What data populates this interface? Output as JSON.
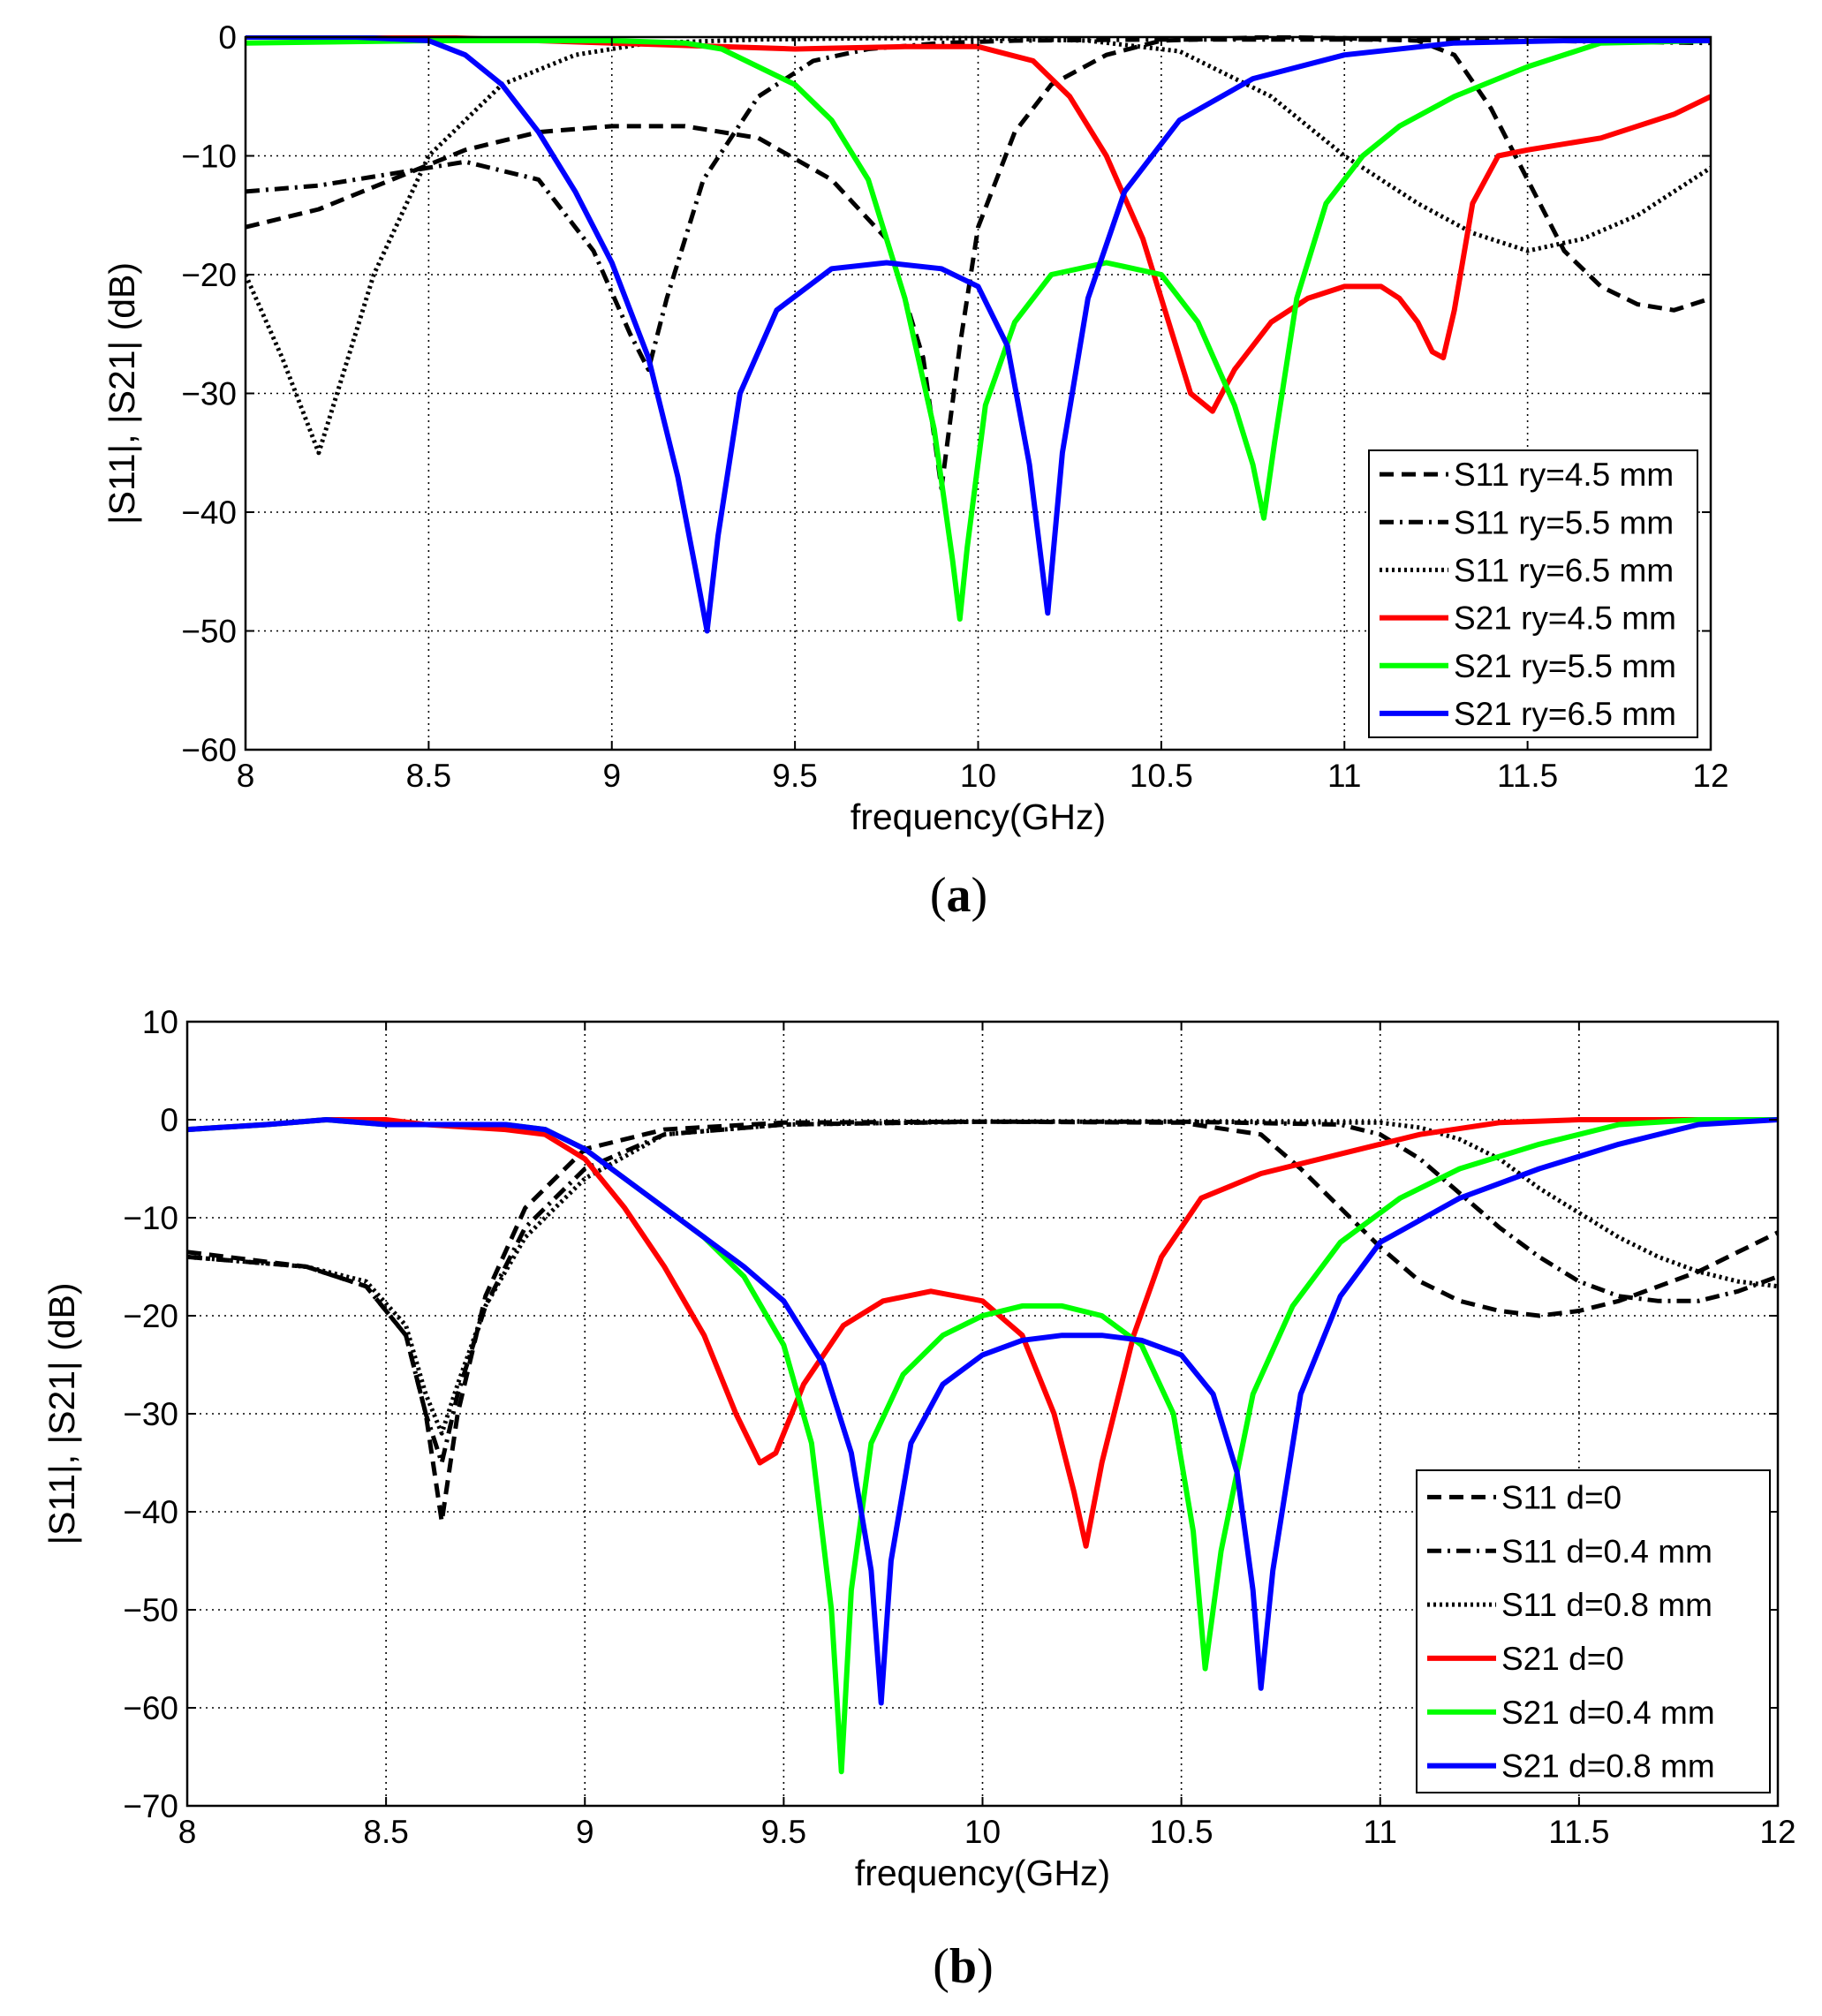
{
  "chart_data": [
    {
      "type": "line",
      "panel_label": "(a)",
      "panel_letter": "a",
      "xlabel": "frequency(GHz)",
      "ylabel": "|S11|, |S21| (dB)",
      "xlim": [
        8,
        12
      ],
      "ylim": [
        -60,
        0
      ],
      "xticks": [
        8,
        8.5,
        9,
        9.5,
        10,
        10.5,
        11,
        11.5,
        12
      ],
      "yticks": [
        -60,
        -50,
        -40,
        -30,
        -20,
        -10,
        0
      ],
      "xtick_labels": [
        "8",
        "8.5",
        "9",
        "9.5",
        "10",
        "10.5",
        "11",
        "11.5",
        "12"
      ],
      "ytick_labels": [
        "−60",
        "−50",
        "−40",
        "−30",
        "−20",
        "−10",
        "0"
      ],
      "grid": true,
      "legend_position": "bottom-right",
      "series": [
        {
          "name": "S11 ry=4.5 mm",
          "color": "#000000",
          "dash": "dashed",
          "x": [
            8,
            8.2,
            8.4,
            8.6,
            8.8,
            9,
            9.2,
            9.4,
            9.6,
            9.75,
            9.85,
            9.9,
            9.95,
            10,
            10.1,
            10.2,
            10.35,
            10.5,
            10.8,
            11,
            11.2,
            11.3,
            11.4,
            11.5,
            11.6,
            11.7,
            11.8,
            11.9,
            12
          ],
          "y": [
            -16,
            -14.5,
            -12,
            -9.5,
            -8,
            -7.5,
            -7.5,
            -8.5,
            -12,
            -17,
            -27,
            -38,
            -26,
            -16,
            -8,
            -4,
            -1.5,
            -0.3,
            0,
            -0.1,
            -0.3,
            -1.5,
            -6,
            -12,
            -18,
            -21,
            -22.5,
            -23,
            -22
          ]
        },
        {
          "name": "S11 ry=5.5 mm",
          "color": "#000000",
          "dash": "dashdot",
          "x": [
            8,
            8.2,
            8.4,
            8.6,
            8.8,
            8.95,
            9.05,
            9.1,
            9.15,
            9.25,
            9.4,
            9.55,
            9.7,
            9.9,
            10.1,
            10.5,
            11,
            11.5,
            12
          ],
          "y": [
            -13,
            -12.5,
            -11.5,
            -10.5,
            -12,
            -18,
            -25,
            -28,
            -22,
            -12,
            -5,
            -2,
            -1,
            -0.5,
            -0.3,
            -0.2,
            -0.2,
            -0.3,
            -0.5
          ]
        },
        {
          "name": "S11 ry=6.5 mm",
          "color": "#000000",
          "dash": "dotted",
          "x": [
            8,
            8.1,
            8.15,
            8.2,
            8.25,
            8.35,
            8.5,
            8.7,
            8.9,
            9.1,
            9.4,
            9.7,
            10,
            10.3,
            10.55,
            10.8,
            11,
            11.2,
            11.35,
            11.5,
            11.65,
            11.8,
            11.9,
            12
          ],
          "y": [
            -20,
            -27,
            -31,
            -35,
            -30,
            -20,
            -10,
            -4,
            -1.5,
            -0.5,
            -0.2,
            -0.1,
            -0.1,
            -0.3,
            -1.2,
            -5,
            -10,
            -14,
            -16.5,
            -18,
            -17,
            -15,
            -13,
            -11
          ]
        },
        {
          "name": "S21 ry=4.5 mm",
          "color": "#ff0000",
          "dash": "solid",
          "x": [
            8,
            8.5,
            9,
            9.5,
            9.8,
            10,
            10.15,
            10.25,
            10.35,
            10.45,
            10.52,
            10.58,
            10.64,
            10.7,
            10.8,
            10.9,
            11,
            11.1,
            11.15,
            11.2,
            11.24,
            11.27,
            11.3,
            11.35,
            11.42,
            11.5,
            11.7,
            11.9,
            12
          ],
          "y": [
            0,
            0,
            -0.5,
            -1,
            -0.8,
            -0.8,
            -2,
            -5,
            -10,
            -17,
            -24,
            -30,
            -31.5,
            -28,
            -24,
            -22,
            -21,
            -21,
            -22,
            -24,
            -26.5,
            -27,
            -23,
            -14,
            -10,
            -9.5,
            -8.5,
            -6.5,
            -5
          ]
        },
        {
          "name": "S21 ry=5.5 mm",
          "color": "#00ff00",
          "dash": "solid",
          "x": [
            8,
            8.5,
            9,
            9.2,
            9.3,
            9.5,
            9.6,
            9.7,
            9.8,
            9.88,
            9.93,
            9.95,
            9.97,
            10.02,
            10.1,
            10.2,
            10.35,
            10.5,
            10.6,
            10.7,
            10.75,
            10.78,
            10.81,
            10.87,
            10.95,
            11.05,
            11.15,
            11.3,
            11.5,
            11.7,
            12
          ],
          "y": [
            -0.5,
            -0.3,
            -0.3,
            -0.5,
            -1,
            -4,
            -7,
            -12,
            -22,
            -33,
            -44,
            -49,
            -43,
            -31,
            -24,
            -20,
            -19,
            -20,
            -24,
            -31,
            -36,
            -40.5,
            -34,
            -22,
            -14,
            -10,
            -7.5,
            -5,
            -2.5,
            -0.5,
            -0.3
          ]
        },
        {
          "name": "S21 ry=6.5 mm",
          "color": "#0000ff",
          "dash": "solid",
          "x": [
            8,
            8.3,
            8.5,
            8.6,
            8.7,
            8.8,
            8.9,
            9,
            9.1,
            9.18,
            9.23,
            9.26,
            9.29,
            9.35,
            9.45,
            9.6,
            9.75,
            9.9,
            10,
            10.08,
            10.14,
            10.19,
            10.23,
            10.3,
            10.4,
            10.55,
            10.75,
            11,
            11.3,
            11.6,
            12
          ],
          "y": [
            0,
            0,
            -0.3,
            -1.5,
            -4,
            -8,
            -13,
            -19,
            -27,
            -37,
            -45,
            -50,
            -42,
            -30,
            -23,
            -19.5,
            -19,
            -19.5,
            -21,
            -26,
            -36,
            -48.5,
            -35,
            -22,
            -13,
            -7,
            -3.5,
            -1.5,
            -0.5,
            -0.3,
            -0.3
          ]
        }
      ]
    },
    {
      "type": "line",
      "panel_label": "(b)",
      "panel_letter": "b",
      "xlabel": "frequency(GHz)",
      "ylabel": "|S11|, |S21| (dB)",
      "xlim": [
        8,
        12
      ],
      "ylim": [
        -70,
        10
      ],
      "xticks": [
        8,
        8.5,
        9,
        9.5,
        10,
        10.5,
        11,
        11.5,
        12
      ],
      "yticks": [
        -70,
        -60,
        -50,
        -40,
        -30,
        -20,
        -10,
        0,
        10
      ],
      "xtick_labels": [
        "8",
        "8.5",
        "9",
        "9.5",
        "10",
        "10.5",
        "11",
        "11.5",
        "12"
      ],
      "ytick_labels": [
        "−70",
        "−60",
        "−50",
        "−40",
        "−30",
        "−20",
        "−10",
        "0",
        "10"
      ],
      "grid": true,
      "legend_position": "bottom-right",
      "series": [
        {
          "name": "S11 d=0",
          "color": "#000000",
          "dash": "dashed",
          "x": [
            8,
            8.3,
            8.45,
            8.55,
            8.6,
            8.64,
            8.68,
            8.75,
            8.85,
            9,
            9.2,
            9.5,
            10,
            10.5,
            10.7,
            10.8,
            10.9,
            11,
            11.1,
            11.2,
            11.3,
            11.4,
            11.5,
            11.6,
            11.7,
            11.8,
            11.9,
            12
          ],
          "y": [
            -13.5,
            -15,
            -17,
            -22,
            -30,
            -41,
            -30,
            -18,
            -9,
            -3,
            -1,
            -0.3,
            -0.2,
            -0.3,
            -1.5,
            -5,
            -9,
            -13,
            -16.5,
            -18.5,
            -19.5,
            -20,
            -19.5,
            -18.5,
            -17,
            -15.5,
            -13.5,
            -11.5
          ]
        },
        {
          "name": "S11 d=0.4 mm",
          "color": "#000000",
          "dash": "dashdot",
          "x": [
            8,
            8.3,
            8.45,
            8.55,
            8.6,
            8.64,
            8.68,
            8.75,
            8.85,
            9,
            9.2,
            9.5,
            10,
            10.5,
            10.9,
            11,
            11.1,
            11.2,
            11.3,
            11.4,
            11.5,
            11.6,
            11.7,
            11.8,
            11.9,
            12
          ],
          "y": [
            -14,
            -15,
            -17,
            -22,
            -30,
            -35,
            -28,
            -19,
            -11,
            -5,
            -1.5,
            -0.5,
            -0.2,
            -0.2,
            -0.5,
            -1.5,
            -4,
            -7.5,
            -11,
            -14,
            -16.5,
            -18,
            -18.5,
            -18.5,
            -17.5,
            -16
          ]
        },
        {
          "name": "S11 d=0.8 mm",
          "color": "#000000",
          "dash": "dotted",
          "x": [
            8,
            8.3,
            8.45,
            8.55,
            8.6,
            8.64,
            8.68,
            8.75,
            8.85,
            9,
            9.2,
            9.5,
            10,
            10.5,
            11,
            11.1,
            11.2,
            11.3,
            11.4,
            11.5,
            11.6,
            11.7,
            11.8,
            11.9,
            12
          ],
          "y": [
            -14,
            -15,
            -16.5,
            -21,
            -28,
            -32,
            -27,
            -19,
            -12,
            -6,
            -1.5,
            -0.5,
            -0.2,
            -0.2,
            -0.3,
            -0.8,
            -2,
            -4,
            -7,
            -9.5,
            -12,
            -14,
            -15.5,
            -16.5,
            -17
          ]
        },
        {
          "name": "S21 d=0",
          "color": "#ff0000",
          "dash": "solid",
          "x": [
            8,
            8.2,
            8.35,
            8.5,
            8.6,
            8.8,
            8.9,
            9,
            9.1,
            9.2,
            9.3,
            9.38,
            9.44,
            9.48,
            9.55,
            9.65,
            9.75,
            9.87,
            10,
            10.1,
            10.18,
            10.23,
            10.26,
            10.3,
            10.38,
            10.45,
            10.55,
            10.7,
            10.9,
            11.1,
            11.3,
            11.5,
            12
          ],
          "y": [
            -1,
            -0.5,
            0,
            0,
            -0.5,
            -1,
            -1.5,
            -4,
            -9,
            -15,
            -22,
            -30,
            -35,
            -34,
            -27,
            -21,
            -18.5,
            -17.5,
            -18.5,
            -22,
            -30,
            -38,
            -43.5,
            -35,
            -22,
            -14,
            -8,
            -5.5,
            -3.5,
            -1.5,
            -0.3,
            0,
            0
          ]
        },
        {
          "name": "S21 d=0.4 mm",
          "color": "#00ff00",
          "dash": "solid",
          "x": [
            8,
            8.2,
            8.35,
            8.5,
            8.6,
            8.8,
            8.9,
            9,
            9.1,
            9.2,
            9.3,
            9.4,
            9.5,
            9.57,
            9.62,
            9.645,
            9.67,
            9.72,
            9.8,
            9.9,
            10,
            10.1,
            10.2,
            10.3,
            10.4,
            10.48,
            10.53,
            10.56,
            10.6,
            10.68,
            10.78,
            10.9,
            11.05,
            11.2,
            11.4,
            11.6,
            11.8,
            12
          ],
          "y": [
            -1,
            -0.5,
            0,
            -0.5,
            -0.5,
            -0.5,
            -1,
            -3,
            -6,
            -9,
            -12,
            -16,
            -23,
            -33,
            -50,
            -66.5,
            -48,
            -33,
            -26,
            -22,
            -20,
            -19,
            -19,
            -20,
            -23,
            -30,
            -42,
            -56,
            -44,
            -28,
            -19,
            -12.5,
            -8,
            -5,
            -2.5,
            -0.5,
            0,
            0
          ]
        },
        {
          "name": "S21 d=0.8 mm",
          "color": "#0000ff",
          "dash": "solid",
          "x": [
            8,
            8.2,
            8.35,
            8.5,
            8.6,
            8.8,
            8.9,
            9,
            9.1,
            9.2,
            9.3,
            9.4,
            9.5,
            9.6,
            9.67,
            9.72,
            9.745,
            9.77,
            9.82,
            9.9,
            10,
            10.1,
            10.2,
            10.3,
            10.4,
            10.5,
            10.58,
            10.64,
            10.68,
            10.7,
            10.73,
            10.8,
            10.9,
            11,
            11.2,
            11.4,
            11.6,
            11.8,
            12
          ],
          "y": [
            -1,
            -0.5,
            0,
            -0.5,
            -0.5,
            -0.5,
            -1,
            -3,
            -6,
            -9,
            -12,
            -15,
            -18.5,
            -25,
            -34,
            -46,
            -59.5,
            -45,
            -33,
            -27,
            -24,
            -22.5,
            -22,
            -22,
            -22.5,
            -24,
            -28,
            -36,
            -48,
            -58,
            -46,
            -28,
            -18,
            -12.5,
            -8,
            -5,
            -2.5,
            -0.5,
            0
          ]
        }
      ]
    }
  ]
}
